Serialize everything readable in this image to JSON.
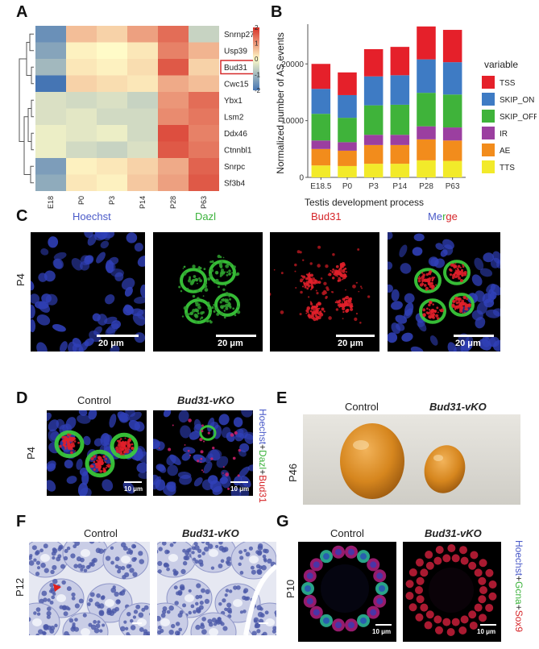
{
  "panels": {
    "a": "A",
    "b": "B",
    "c": "C",
    "d": "D",
    "e": "E",
    "f": "F",
    "g": "G"
  },
  "heatmap": {
    "columns": [
      "E18",
      "P0",
      "P3",
      "P14",
      "P28",
      "P63"
    ],
    "rows": [
      "Snrnp27",
      "Usp39",
      "Bud31",
      "Cwc15",
      "Ybx1",
      "Lsm2",
      "Ddx46",
      "Ctnnbl1",
      "Snrpc",
      "Sf3b4"
    ],
    "highlight_row": "Bud31",
    "values": [
      [
        -1.6,
        0.6,
        0.4,
        0.9,
        1.4,
        -0.6
      ],
      [
        -1.3,
        0.1,
        0.0,
        0.2,
        1.2,
        0.7
      ],
      [
        -1.0,
        0.2,
        0.1,
        0.3,
        1.6,
        0.4
      ],
      [
        -2.0,
        0.4,
        0.3,
        0.2,
        0.8,
        0.6
      ],
      [
        -0.4,
        -0.5,
        -0.4,
        -0.6,
        1.0,
        1.4
      ],
      [
        -0.4,
        -0.3,
        -0.5,
        -0.5,
        1.1,
        1.3
      ],
      [
        -0.2,
        -0.3,
        -0.2,
        -0.5,
        1.7,
        1.2
      ],
      [
        -0.2,
        -0.5,
        -0.6,
        -0.4,
        1.6,
        1.3
      ],
      [
        -1.4,
        0.1,
        0.2,
        0.4,
        0.8,
        1.5
      ],
      [
        -1.2,
        0.2,
        0.1,
        0.5,
        0.9,
        1.6
      ]
    ],
    "legend_ticks": [
      "2",
      "1",
      "0",
      "-1",
      "-2"
    ],
    "colors": {
      "low": "#4575b4",
      "mid": "#fffbc8",
      "high": "#d73027"
    }
  },
  "chart_data": {
    "type": "bar",
    "stacked": true,
    "categories": [
      "E18.5",
      "P0",
      "P3",
      "P14",
      "P28",
      "P63"
    ],
    "xlabel": "Testis development process",
    "ylabel": "Normalized number of AS events",
    "ylim": [
      0,
      27000
    ],
    "yticks": [
      0,
      10000,
      20000
    ],
    "legend_title": "variable",
    "series": [
      {
        "name": "TTS",
        "color": "#f2ea2a",
        "values": [
          2100,
          2000,
          2400,
          2400,
          3000,
          2900
        ]
      },
      {
        "name": "AE",
        "color": "#f28c1c",
        "values": [
          2900,
          2700,
          3300,
          3300,
          3700,
          3600
        ]
      },
      {
        "name": "IR",
        "color": "#9b3fa0",
        "values": [
          1500,
          1500,
          1800,
          1800,
          2300,
          2300
        ]
      },
      {
        "name": "SKIP_OFF",
        "color": "#3fb33a",
        "values": [
          4700,
          4300,
          5200,
          5300,
          5900,
          5800
        ]
      },
      {
        "name": "SKIP_ON",
        "color": "#3e7bc4",
        "values": [
          4400,
          4000,
          5100,
          5200,
          5900,
          5700
        ]
      },
      {
        "name": "TSS",
        "color": "#e5202a",
        "values": [
          4400,
          4000,
          4800,
          5000,
          5800,
          5700
        ]
      }
    ]
  },
  "panel_c": {
    "titles": [
      "Hoechst",
      "Dazl",
      "Bud31",
      "Merge"
    ],
    "merge_parts": [
      "Me",
      "r",
      "ge"
    ],
    "row_label": "P4",
    "scale": "20 μm"
  },
  "panel_d": {
    "control": "Control",
    "ko": "Bud31-vKO",
    "row_label": "P4",
    "side_parts": [
      "Hoechst",
      "+",
      "Dazl",
      "+",
      "Bud31"
    ],
    "scale": "10 μm"
  },
  "panel_e": {
    "control": "Control",
    "ko": "Bud31-vKO",
    "row_label": "P46"
  },
  "panel_f": {
    "control": "Control",
    "ko": "Bud31-vKO",
    "row_label": "P12"
  },
  "panel_g": {
    "control": "Control",
    "ko": "Bud31-vKO",
    "row_label": "P10",
    "side_parts": [
      "Hoechst",
      "+",
      "Gcna",
      "+",
      "Sox9"
    ],
    "scale": "10 μm"
  }
}
